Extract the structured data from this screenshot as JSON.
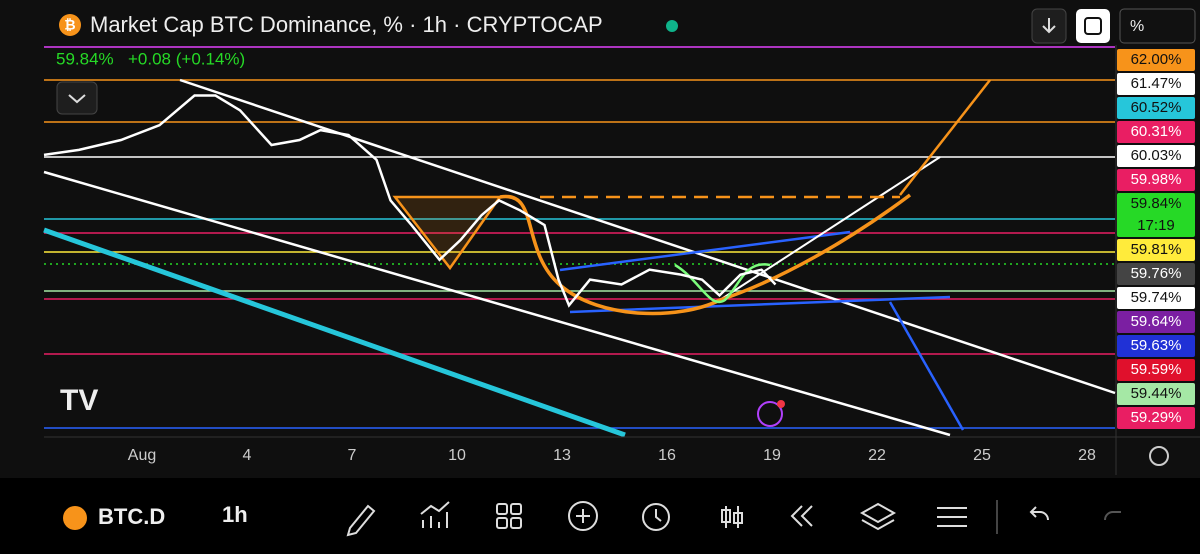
{
  "header": {
    "title": "Market Cap BTC Dominance, % · 1h · CRYPTOCAP",
    "last": "59.84%",
    "change": "+0.08 (+0.14%)",
    "scale_button": "%"
  },
  "price_scale": {
    "labels": [
      {
        "text": "62.00%",
        "color": "#f7931a"
      },
      {
        "text": "61.47%",
        "color": "#ffffff"
      },
      {
        "text": "60.52%",
        "color": "#26c6da"
      },
      {
        "text": "60.31%",
        "color": "#e91e63"
      },
      {
        "text": "60.03%",
        "color": "#ffffff"
      },
      {
        "text": "59.98%",
        "color": "#e91e63"
      },
      {
        "text": "59.84%",
        "color": "#26d926"
      },
      {
        "text": "59.81%",
        "color": "#ffeb3b"
      },
      {
        "text": "59.76%",
        "color": "#444444"
      },
      {
        "text": "59.74%",
        "color": "#ffffff"
      },
      {
        "text": "59.64%",
        "color": "#7b1fa2"
      },
      {
        "text": "59.63%",
        "color": "#2031d6"
      },
      {
        "text": "59.59%",
        "color": "#e0102c"
      },
      {
        "text": "59.44%",
        "color": "#a5e8a5"
      },
      {
        "text": "59.29%",
        "color": "#e91e63"
      }
    ],
    "countdown": "17:19"
  },
  "chart_data": {
    "type": "line",
    "color": "#ffffff",
    "x": [
      -1.8,
      -0.8,
      0.4,
      1.5,
      2.5,
      3.1,
      3.8,
      4.7,
      5.5,
      6.1,
      6.9,
      7.7,
      8.1,
      8.7,
      9.5,
      10.1,
      10.7,
      11.2,
      11.8,
      12.5,
      12.9,
      13.2,
      13.8,
      14.7,
      15.5,
      16.4,
      17.0,
      17.5,
      18.1,
      18.7,
      19.1
    ],
    "values": [
      61.31,
      61.36,
      61.46,
      61.61,
      61.91,
      61.91,
      61.76,
      61.41,
      61.46,
      61.56,
      61.51,
      61.26,
      60.85,
      60.6,
      60.25,
      60.45,
      60.7,
      60.85,
      60.75,
      60.6,
      60.05,
      59.79,
      60.05,
      60.0,
      60.15,
      60.1,
      60.05,
      59.89,
      60.1,
      60.15,
      60.0
    ],
    "xlim": [
      -1.8,
      28.8
    ],
    "ylim": [
      58.53,
      62.42
    ],
    "xticks": [
      {
        "value": 1,
        "label": "Aug"
      },
      4,
      7,
      10,
      13,
      16,
      19,
      22,
      25,
      28
    ],
    "grid": false
  },
  "toolbar": {
    "symbol": "BTC.D",
    "interval": "1h"
  }
}
